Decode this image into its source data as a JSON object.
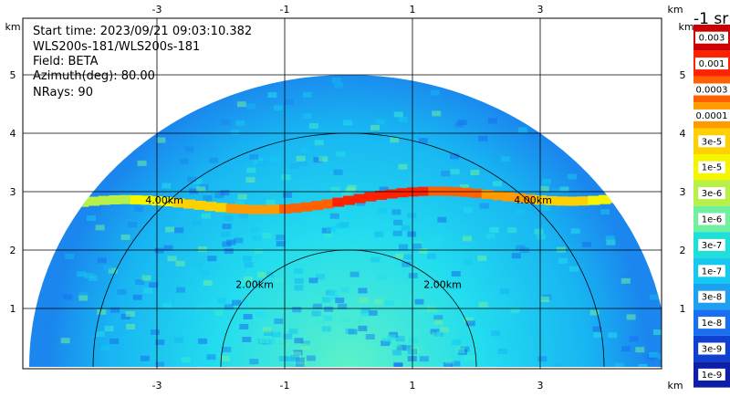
{
  "info": {
    "start_time": "Start time: 2023/09/21 09:03:10.382",
    "instrument": "WLS200s-181/WLS200s-181",
    "field": "Field: BETA",
    "azimuth": "Azimuth(deg): 80.00",
    "nrays": "NRays: 90"
  },
  "chart_data": {
    "type": "heatmap",
    "projection": "RHI polar sector (range vs elevation) in km",
    "x_unit": "km",
    "y_unit": "km",
    "x_ticks": [
      -3,
      -1,
      1,
      3
    ],
    "y_ticks": [
      1,
      2,
      3,
      4,
      5
    ],
    "x_tick_labels": [
      "-3",
      "-1",
      "1",
      "3"
    ],
    "y_tick_labels": [
      "1",
      "2",
      "3",
      "4",
      "5"
    ],
    "xlim": [
      -5.0,
      5.0
    ],
    "ylim": [
      0.0,
      5.5
    ],
    "max_range_km": 5.0,
    "grid": true,
    "range_rings": [
      {
        "radius_km": 2.0,
        "label": "2.00km"
      },
      {
        "radius_km": 4.0,
        "label": "4.00km"
      }
    ],
    "colorbar": {
      "title": "-1 sr",
      "labels": [
        "0.003",
        "0.001",
        "0.0003",
        "0.0001",
        "3e-5",
        "1e-5",
        "3e-6",
        "1e-6",
        "3e-7",
        "1e-7",
        "3e-8",
        "1e-8",
        "3e-9",
        "1e-9"
      ],
      "colors": [
        "#cc0000",
        "#ff2200",
        "#ff6000",
        "#ff9a00",
        "#ffd000",
        "#f5f500",
        "#b7f048",
        "#6ef0a0",
        "#1fe0d8",
        "#14c8f0",
        "#1da0f0",
        "#1a6ef0",
        "#1040d0",
        "#0d1fa8"
      ]
    },
    "layer": {
      "description": "enhanced backscatter band near 3 km height",
      "height_km_left": 2.7,
      "height_km_right": 3.0
    }
  }
}
